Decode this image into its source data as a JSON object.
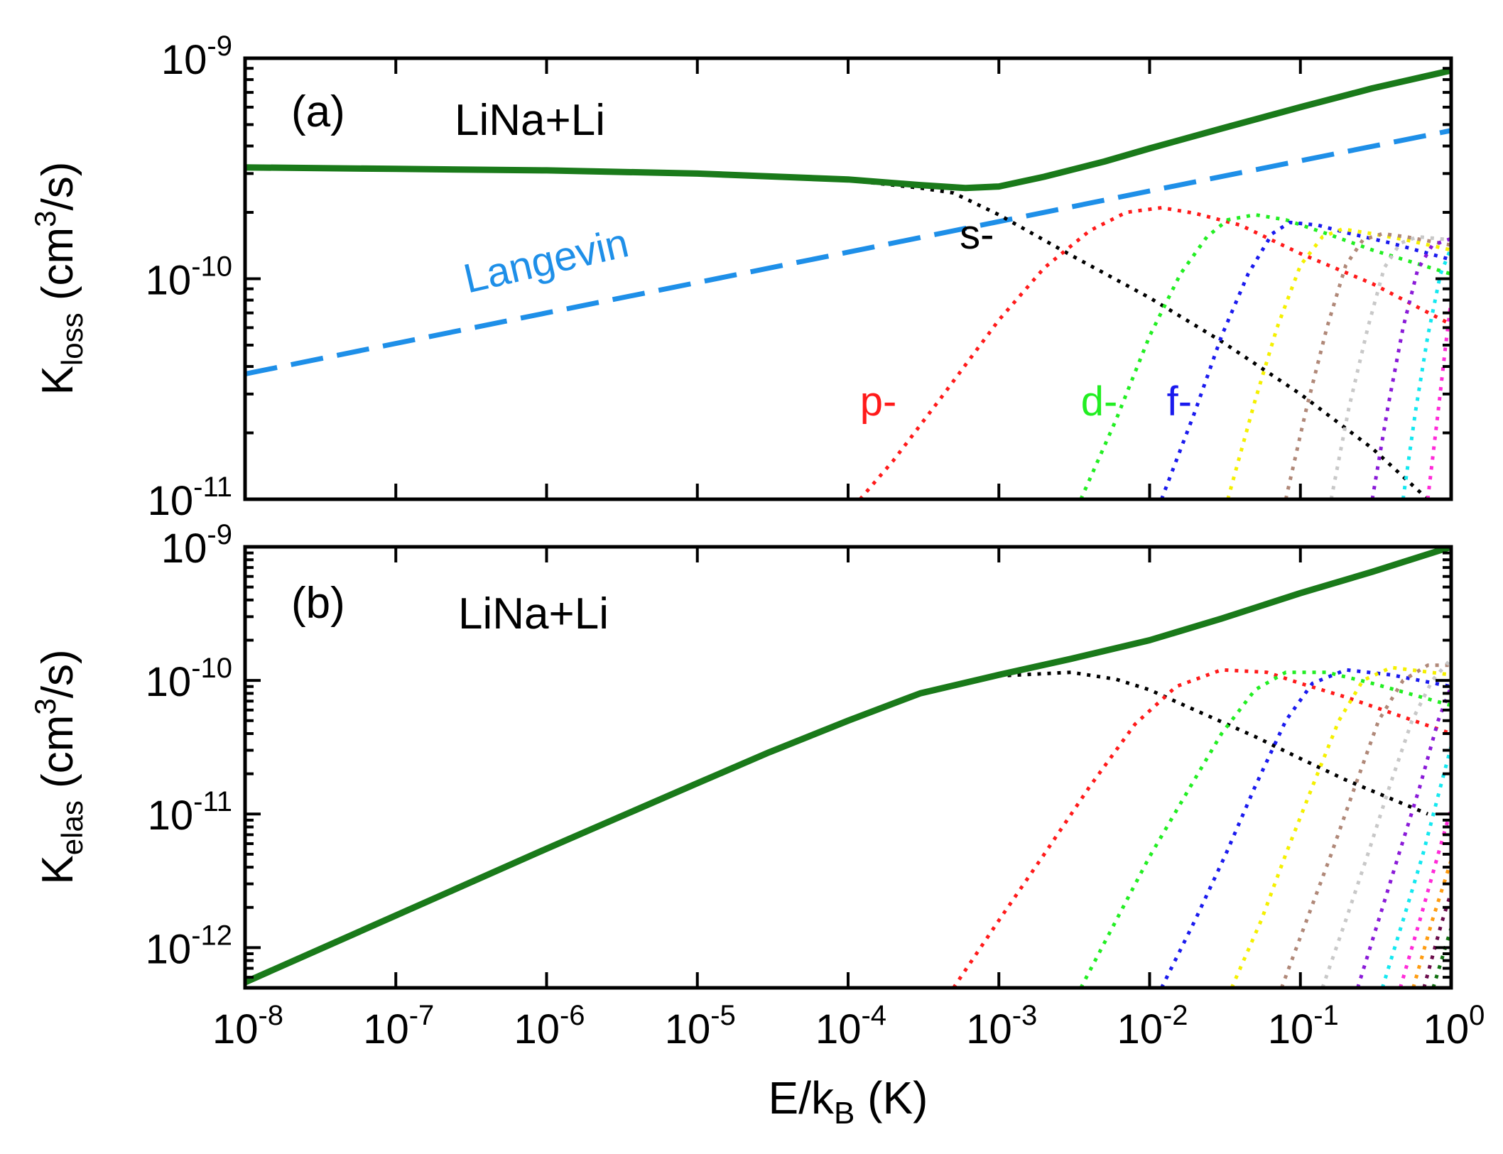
{
  "colors": {
    "total": "#1a7a1a",
    "langevin": "#1e8fe8",
    "s": "#000000",
    "p": "#ff1a1a",
    "d": "#22ee22",
    "f": "#1a1aee",
    "g": "#f5f000",
    "h": "#b08878",
    "i": "#c8c8c8",
    "j": "#8a1ad8",
    "k": "#14e8f0",
    "l": "#ff2ad8",
    "m": "#ff9c10",
    "n": "#6a0a4a",
    "o": "#107010"
  },
  "chart_data": [
    {
      "type": "line",
      "panel_label": "(a)",
      "system_label": "LiNa+Li",
      "xlabel": {
        "main": "E/k",
        "sub": "B",
        "tail": " (K)"
      },
      "ylabel": {
        "main": "K",
        "sub": "loss",
        "unit_pre": " (cm",
        "sup": "3",
        "unit_post": "/s)"
      },
      "xscale": "log",
      "yscale": "log",
      "xlim": [
        1e-08,
        1
      ],
      "ylim": [
        1e-11,
        1e-09
      ],
      "yticks": [
        {
          "value": 1e-11,
          "base": "10",
          "exp": "-11"
        },
        {
          "value": 1e-10,
          "base": "10",
          "exp": "-10"
        },
        {
          "value": 1e-09,
          "base": "10",
          "exp": "-9"
        }
      ],
      "annotations": [
        {
          "text": "Langevin",
          "color_key": "langevin",
          "x": 3e-07,
          "y": 8.6e-11,
          "rotate": -13
        },
        {
          "text": "s-",
          "color_key": "s",
          "x": 0.00055,
          "y": 1.37e-10
        },
        {
          "text": "p-",
          "color_key": "p",
          "x": 0.00012,
          "y": 2.4e-11
        },
        {
          "text": "d-",
          "color_key": "d",
          "x": 0.0035,
          "y": 2.4e-11
        },
        {
          "text": "f-",
          "color_key": "f",
          "x": 0.013,
          "y": 2.4e-11
        }
      ],
      "series": [
        {
          "color_key": "langevin",
          "style": "dashed",
          "width": 7,
          "x": [
            1e-08,
            1e-06,
            0.0001,
            0.01,
            1
          ],
          "y": [
            3.7e-11,
            7e-11,
            1.32e-10,
            2.5e-10,
            4.7e-10
          ]
        },
        {
          "color_key": "s",
          "style": "dotted",
          "width": 5,
          "x": [
            1e-08,
            1e-06,
            1e-05,
            0.0001,
            0.0003,
            0.0005,
            0.001,
            0.003,
            0.01,
            0.03,
            0.1,
            0.3,
            0.7
          ],
          "y": [
            3.2e-10,
            3.1e-10,
            3e-10,
            2.8e-10,
            2.58e-10,
            2.45e-10,
            1.95e-10,
            1.28e-10,
            8.2e-11,
            5.2e-11,
            3e-11,
            1.7e-11,
            1e-11
          ]
        },
        {
          "color_key": "p",
          "style": "dotted",
          "width": 5,
          "x": [
            0.00012,
            0.0002,
            0.0004,
            0.001,
            0.002,
            0.004,
            0.007,
            0.012,
            0.02,
            0.04,
            0.1,
            0.3,
            1
          ],
          "y": [
            1e-11,
            1.5e-11,
            2.8e-11,
            6.5e-11,
            1.12e-10,
            1.65e-10,
            2e-10,
            2.1e-10,
            1.98e-10,
            1.75e-10,
            1.3e-10,
            9.5e-11,
            6.2e-11
          ]
        },
        {
          "color_key": "d",
          "style": "dotted",
          "width": 5,
          "x": [
            0.0035,
            0.006,
            0.01,
            0.016,
            0.024,
            0.033,
            0.05,
            0.08,
            0.15,
            0.3,
            1
          ],
          "y": [
            1e-11,
            2.3e-11,
            5.5e-11,
            1.05e-10,
            1.55e-10,
            1.85e-10,
            1.95e-10,
            1.85e-10,
            1.6e-10,
            1.35e-10,
            1.05e-10
          ]
        },
        {
          "color_key": "f",
          "style": "dotted",
          "width": 5,
          "x": [
            0.012,
            0.02,
            0.03,
            0.045,
            0.065,
            0.085,
            0.13,
            0.2,
            0.4,
            1
          ],
          "y": [
            1e-11,
            2.5e-11,
            5.5e-11,
            1.05e-10,
            1.6e-10,
            1.8e-10,
            1.75e-10,
            1.62e-10,
            1.45e-10,
            1.22e-10
          ]
        },
        {
          "color_key": "g",
          "style": "dotted",
          "width": 5,
          "x": [
            0.033,
            0.05,
            0.07,
            0.1,
            0.14,
            0.19,
            0.3,
            0.5,
            1
          ],
          "y": [
            1e-11,
            2.8e-11,
            6e-11,
            1.15e-10,
            1.55e-10,
            1.68e-10,
            1.6e-10,
            1.5e-10,
            1.35e-10
          ]
        },
        {
          "color_key": "h",
          "style": "dotted",
          "width": 5,
          "x": [
            0.08,
            0.11,
            0.15,
            0.2,
            0.26,
            0.35,
            0.5,
            1
          ],
          "y": [
            1e-11,
            2.6e-11,
            6e-11,
            1.15e-10,
            1.5e-10,
            1.6e-10,
            1.55e-10,
            1.42e-10
          ]
        },
        {
          "color_key": "i",
          "style": "dotted",
          "width": 5,
          "x": [
            0.16,
            0.21,
            0.28,
            0.36,
            0.46,
            0.6,
            1
          ],
          "y": [
            1e-11,
            2.6e-11,
            6e-11,
            1.12e-10,
            1.45e-10,
            1.55e-10,
            1.5e-10
          ]
        },
        {
          "color_key": "j",
          "style": "dotted",
          "width": 5,
          "x": [
            0.3,
            0.38,
            0.48,
            0.6,
            0.75,
            1
          ],
          "y": [
            1e-11,
            2.6e-11,
            6e-11,
            1.1e-10,
            1.42e-10,
            1.52e-10
          ]
        },
        {
          "color_key": "k",
          "style": "dotted",
          "width": 5,
          "x": [
            0.48,
            0.58,
            0.7,
            0.85,
            1
          ],
          "y": [
            1e-11,
            2.5e-11,
            5.5e-11,
            1.05e-10,
            1.38e-10
          ]
        },
        {
          "color_key": "l",
          "style": "dotted",
          "width": 5,
          "x": [
            0.7,
            0.82,
            0.92,
            1
          ],
          "y": [
            1e-11,
            2.5e-11,
            5e-11,
            8e-11
          ]
        },
        {
          "color_key": "total",
          "style": "solid",
          "width": 9,
          "x": [
            1e-08,
            1e-07,
            1e-06,
            1e-05,
            0.0001,
            0.0003,
            0.0006,
            0.001,
            0.002,
            0.005,
            0.01,
            0.03,
            0.1,
            0.3,
            1
          ],
          "y": [
            3.2e-10,
            3.15e-10,
            3.1e-10,
            3e-10,
            2.82e-10,
            2.66e-10,
            2.58e-10,
            2.62e-10,
            2.9e-10,
            3.4e-10,
            3.9e-10,
            4.8e-10,
            6e-10,
            7.3e-10,
            8.8e-10
          ]
        }
      ]
    },
    {
      "type": "line",
      "panel_label": "(b)",
      "system_label": "LiNa+Li",
      "ylabel": {
        "main": "K",
        "sub": "elas",
        "unit_pre": " (cm",
        "sup": "3",
        "unit_post": "/s)"
      },
      "xscale": "log",
      "yscale": "log",
      "xlim": [
        1e-08,
        1
      ],
      "ylim": [
        5e-13,
        1e-09
      ],
      "xticks": [
        {
          "value": 1e-08,
          "base": "10",
          "exp": "-8"
        },
        {
          "value": 1e-07,
          "base": "10",
          "exp": "-7"
        },
        {
          "value": 1e-06,
          "base": "10",
          "exp": "-6"
        },
        {
          "value": 1e-05,
          "base": "10",
          "exp": "-5"
        },
        {
          "value": 0.0001,
          "base": "10",
          "exp": "-4"
        },
        {
          "value": 0.001,
          "base": "10",
          "exp": "-3"
        },
        {
          "value": 0.01,
          "base": "10",
          "exp": "-2"
        },
        {
          "value": 0.1,
          "base": "10",
          "exp": "-1"
        },
        {
          "value": 1,
          "base": "10",
          "exp": "0"
        }
      ],
      "yticks": [
        {
          "value": 1e-12,
          "base": "10",
          "exp": "-12"
        },
        {
          "value": 1e-11,
          "base": "10",
          "exp": "-11"
        },
        {
          "value": 1e-10,
          "base": "10",
          "exp": "-10"
        },
        {
          "value": 1e-09,
          "base": "10",
          "exp": "-9"
        }
      ],
      "series": [
        {
          "color_key": "s",
          "style": "dotted",
          "width": 5,
          "x": [
            0.0003,
            0.001,
            0.003,
            0.006,
            0.01,
            0.02,
            0.05,
            0.1,
            0.2,
            0.4,
            0.7
          ],
          "y": [
            8e-11,
            1.08e-10,
            1.15e-10,
            1.02e-10,
            8.5e-11,
            6e-11,
            3.8e-11,
            2.6e-11,
            1.8e-11,
            1.3e-11,
            1e-11
          ]
        },
        {
          "color_key": "p",
          "style": "dotted",
          "width": 5,
          "x": [
            0.0005,
            0.001,
            0.002,
            0.004,
            0.008,
            0.015,
            0.03,
            0.06,
            0.1,
            0.2,
            1
          ],
          "y": [
            5e-13,
            1.6e-12,
            5e-12,
            1.6e-11,
            4.7e-11,
            9e-11,
            1.2e-10,
            1.15e-10,
            9.5e-11,
            7.5e-11,
            4e-11
          ]
        },
        {
          "color_key": "d",
          "style": "dotted",
          "width": 5,
          "x": [
            0.0035,
            0.006,
            0.01,
            0.018,
            0.03,
            0.05,
            0.08,
            0.15,
            0.3,
            1
          ],
          "y": [
            5e-13,
            1.6e-12,
            4.8e-12,
            1.5e-11,
            4e-11,
            8.5e-11,
            1.15e-10,
            1.15e-10,
            9.5e-11,
            6.5e-11
          ]
        },
        {
          "color_key": "f",
          "style": "dotted",
          "width": 5,
          "x": [
            0.012,
            0.02,
            0.032,
            0.05,
            0.08,
            0.12,
            0.2,
            0.4,
            1
          ],
          "y": [
            5e-13,
            1.6e-12,
            5e-12,
            1.6e-11,
            5e-11,
            9.5e-11,
            1.2e-10,
            1.1e-10,
            9e-11
          ]
        },
        {
          "color_key": "g",
          "style": "dotted",
          "width": 5,
          "x": [
            0.035,
            0.055,
            0.08,
            0.12,
            0.18,
            0.26,
            0.4,
            1
          ],
          "y": [
            5e-13,
            1.6e-12,
            5e-12,
            1.6e-11,
            5e-11,
            1e-10,
            1.25e-10,
            1.1e-10
          ]
        },
        {
          "color_key": "h",
          "style": "dotted",
          "width": 5,
          "x": [
            0.075,
            0.11,
            0.16,
            0.23,
            0.33,
            0.48,
            0.7,
            1
          ],
          "y": [
            5e-13,
            1.6e-12,
            5e-12,
            1.6e-11,
            5e-11,
            1e-10,
            1.3e-10,
            1.3e-10
          ]
        },
        {
          "color_key": "i",
          "style": "dotted",
          "width": 5,
          "x": [
            0.14,
            0.2,
            0.28,
            0.39,
            0.55,
            0.75,
            1
          ],
          "y": [
            5e-13,
            1.6e-12,
            5e-12,
            1.6e-11,
            5e-11,
            1e-10,
            1.45e-10
          ]
        },
        {
          "color_key": "j",
          "style": "dotted",
          "width": 5,
          "x": [
            0.24,
            0.33,
            0.45,
            0.62,
            0.82,
            1
          ],
          "y": [
            5e-13,
            1.6e-12,
            5e-12,
            1.6e-11,
            5e-11,
            9e-11
          ]
        },
        {
          "color_key": "k",
          "style": "dotted",
          "width": 5,
          "x": [
            0.35,
            0.48,
            0.65,
            0.85,
            1
          ],
          "y": [
            5e-13,
            1.6e-12,
            5e-12,
            1.6e-11,
            3.2e-11
          ]
        },
        {
          "color_key": "l",
          "style": "dotted",
          "width": 5,
          "x": [
            0.46,
            0.62,
            0.82,
            1
          ],
          "y": [
            5e-13,
            1.6e-12,
            5e-12,
            1.1e-11
          ]
        },
        {
          "color_key": "m",
          "style": "dotted",
          "width": 5,
          "x": [
            0.56,
            0.75,
            1
          ],
          "y": [
            5e-13,
            1.6e-12,
            4.5e-12
          ]
        },
        {
          "color_key": "n",
          "style": "dotted",
          "width": 5,
          "x": [
            0.66,
            0.86,
            1
          ],
          "y": [
            5e-13,
            1.5e-12,
            2.6e-12
          ]
        },
        {
          "color_key": "o",
          "style": "dotted",
          "width": 5,
          "x": [
            0.76,
            1
          ],
          "y": [
            5e-13,
            1.4e-12
          ]
        },
        {
          "color_key": "total",
          "style": "solid",
          "width": 9,
          "x": [
            1e-08,
            1e-06,
            1e-05,
            3e-05,
            0.0001,
            0.0003,
            0.001,
            0.003,
            0.01,
            0.03,
            0.1,
            0.3,
            1
          ],
          "y": [
            5.5e-13,
            5.5e-12,
            1.7e-11,
            2.9e-11,
            5e-11,
            8e-11,
            1.1e-10,
            1.45e-10,
            2e-10,
            2.9e-10,
            4.5e-10,
            6.5e-10,
            1e-09
          ]
        }
      ]
    }
  ]
}
